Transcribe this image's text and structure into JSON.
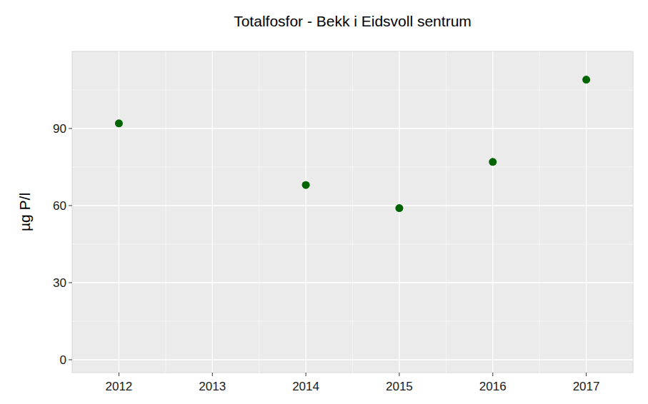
{
  "chart_data": {
    "type": "scatter",
    "title": "Totalfosfor - Bekk i Eidsvoll sentrum",
    "y_label": "µg P/l",
    "x": [
      2012,
      2014,
      2015,
      2016,
      2017
    ],
    "values": [
      92,
      68,
      59,
      77,
      109
    ],
    "color": "#006400",
    "marker": "circle",
    "xlim": [
      2011.5,
      2017.5
    ],
    "xticks": [
      2012,
      2013,
      2014,
      2015,
      2016,
      2017
    ],
    "ylim": [
      -5,
      120
    ],
    "yticks": [
      0,
      30,
      60,
      90
    ],
    "grid": true
  }
}
